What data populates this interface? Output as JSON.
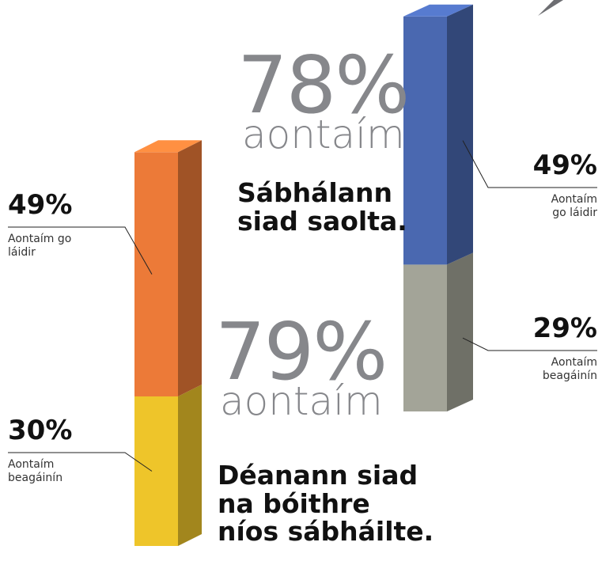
{
  "chart_data": [
    {
      "type": "stacked-bar3d",
      "total": {
        "value": 78,
        "label": "78%"
      },
      "total_caption": "aontaím",
      "statement": "Sábhálann siad saolta.",
      "series": [
        {
          "name": "Aontaím go láidir",
          "color": "#4a68b0",
          "values": [
            49
          ],
          "value_labels": [
            "49%"
          ]
        },
        {
          "name": "Aontaím beagáinín",
          "color": "#a3a498",
          "values": [
            29
          ],
          "value_labels": [
            "29%"
          ]
        }
      ]
    },
    {
      "type": "stacked-bar3d",
      "total": {
        "value": 79,
        "label": "79%"
      },
      "total_caption": "aontaím",
      "statement": "Déanann siad na bóithre níos sábháilte.",
      "series": [
        {
          "name": "Aontaím go láidir",
          "color": "#ec7a38",
          "values": [
            49
          ],
          "value_labels": [
            "49%"
          ]
        },
        {
          "name": "Aontaím beagáinín",
          "color": "#eec52a",
          "values": [
            30
          ],
          "value_labels": [
            "30%"
          ]
        }
      ]
    }
  ]
}
